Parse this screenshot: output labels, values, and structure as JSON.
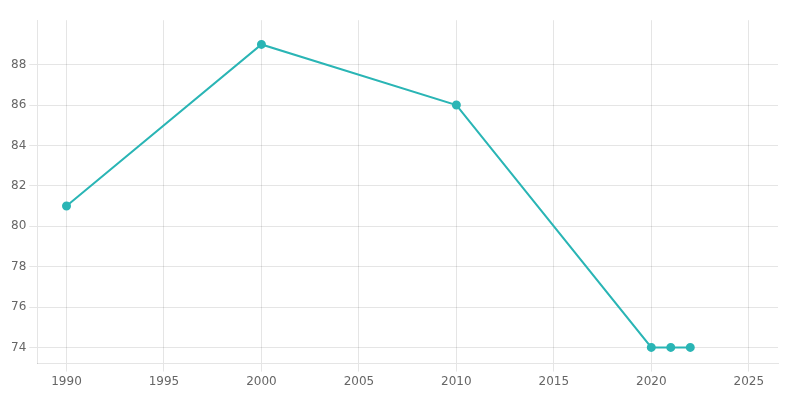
{
  "chart_data": {
    "type": "line",
    "x": [
      1990,
      2000,
      2010,
      2020,
      2021,
      2022
    ],
    "values": [
      81,
      89,
      86,
      74,
      74,
      74
    ],
    "color": "#2ab5b5",
    "marker": "circle",
    "xlim": [
      1988.5,
      2026.5
    ],
    "xticks": [
      1990,
      1995,
      2000,
      2005,
      2010,
      2015,
      2020,
      2025
    ],
    "ylim": [
      73.2,
      90.2
    ],
    "yticks": [
      74,
      76,
      78,
      80,
      82,
      84,
      86,
      88
    ],
    "grid": true
  }
}
